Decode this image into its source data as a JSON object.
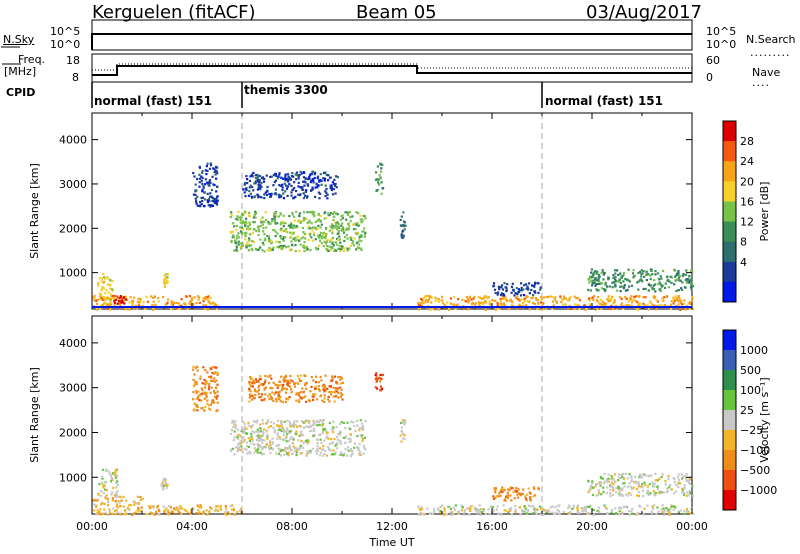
{
  "header": {
    "station": "Kerguelen (fitACF)",
    "beam": "Beam 05",
    "date": "03/Aug/2017"
  },
  "noise_panel": {
    "left_label": "N.Sky",
    "right_label": "N.Search",
    "left_ticks": [
      "10^5",
      "10^0"
    ],
    "right_ticks": [
      "10^5",
      "10^0"
    ]
  },
  "freq_panel": {
    "left_label_1": "Freq.",
    "left_label_2": "[MHz]",
    "right_label": "Nave",
    "left_ticks": [
      "18",
      "8"
    ],
    "right_ticks": [
      "60",
      "0"
    ]
  },
  "cpid": {
    "label": "CPID",
    "modes": [
      {
        "name": "normal (fast) 151",
        "start_h": 0
      },
      {
        "name": "themis 3300",
        "start_h": 6
      },
      {
        "name": "normal (fast) 151",
        "start_h": 18
      }
    ]
  },
  "time_axis": {
    "label": "Time UT",
    "ticks": [
      "00:00",
      "04:00",
      "08:00",
      "12:00",
      "16:00",
      "20:00",
      "00:00"
    ]
  },
  "chart_data": [
    {
      "type": "heatmap",
      "name": "power",
      "ylabel": "Slant Range [km]",
      "yticks": [
        1000,
        2000,
        3000,
        4000
      ],
      "ylim": [
        180,
        4600
      ],
      "xlim_hours": [
        0,
        24
      ],
      "colorbar": {
        "label": "Power [dB]",
        "ticks": [
          "28",
          "24",
          "20",
          "16",
          "12",
          "8",
          "4"
        ],
        "colors": [
          "#dd0000",
          "#f35a10",
          "#f7a418",
          "#f5cf2a",
          "#79c24a",
          "#3a8f58",
          "#2e6f6e",
          "#1a3a9c",
          "#0018e8"
        ]
      },
      "regions": [
        {
          "h0": 0.2,
          "h1": 0.8,
          "r0": 180,
          "r1": 1000,
          "c": 3
        },
        {
          "h0": 2.8,
          "h1": 3.0,
          "r0": 700,
          "r1": 1000,
          "c": 3
        },
        {
          "h0": 0.0,
          "h1": 5.0,
          "r0": 180,
          "r1": 500,
          "c": 2
        },
        {
          "h0": 0.8,
          "h1": 1.4,
          "r0": 300,
          "r1": 500,
          "c": 0
        },
        {
          "h0": 5.5,
          "h1": 10.9,
          "r0": 1500,
          "r1": 2400,
          "c": 4
        },
        {
          "h0": 4.0,
          "h1": 5.0,
          "r0": 2500,
          "r1": 3500,
          "c": 7
        },
        {
          "h0": 6.0,
          "h1": 9.8,
          "r0": 2700,
          "r1": 3300,
          "c": 7
        },
        {
          "h0": 11.3,
          "h1": 11.6,
          "r0": 2800,
          "r1": 3500,
          "c": 5
        },
        {
          "h0": 12.3,
          "h1": 12.5,
          "r0": 1800,
          "r1": 2400,
          "c": 6
        },
        {
          "h0": 13.0,
          "h1": 24.0,
          "r0": 180,
          "r1": 500,
          "c": 2
        },
        {
          "h0": 16.0,
          "h1": 18.0,
          "r0": 500,
          "r1": 800,
          "c": 7
        },
        {
          "h0": 19.8,
          "h1": 24.0,
          "r0": 600,
          "r1": 1100,
          "c": 5
        }
      ]
    },
    {
      "type": "heatmap",
      "name": "velocity",
      "ylabel": "Slant Range [km]",
      "yticks": [
        1000,
        2000,
        3000,
        4000
      ],
      "ylim": [
        180,
        4600
      ],
      "xlim_hours": [
        0,
        24
      ],
      "colorbar": {
        "label": "Velocity [m s⁻¹]",
        "ticks": [
          "1000",
          "500",
          "100",
          "25",
          "−25",
          "−100",
          "−500",
          "−1000"
        ],
        "colors": [
          "#0018e8",
          "#3a5fb5",
          "#2f8f4e",
          "#66c43d",
          "#c8c8c8",
          "#f2b52a",
          "#f08c1a",
          "#ef5010",
          "#e00000"
        ]
      },
      "regions": [
        {
          "h0": 0.0,
          "h1": 2.0,
          "r0": 180,
          "r1": 600,
          "c": 5
        },
        {
          "h0": 0.2,
          "h1": 1.0,
          "r0": 600,
          "r1": 1200,
          "c": 4
        },
        {
          "h0": 2.7,
          "h1": 3.0,
          "r0": 700,
          "r1": 1000,
          "c": 4
        },
        {
          "h0": 2.0,
          "h1": 6.0,
          "r0": 180,
          "r1": 400,
          "c": 5
        },
        {
          "h0": 5.5,
          "h1": 10.9,
          "r0": 1500,
          "r1": 2300,
          "c": 4
        },
        {
          "h0": 4.0,
          "h1": 5.0,
          "r0": 2500,
          "r1": 3500,
          "c": 6
        },
        {
          "h0": 6.2,
          "h1": 10.0,
          "r0": 2700,
          "r1": 3300,
          "c": 6
        },
        {
          "h0": 11.3,
          "h1": 11.6,
          "r0": 2900,
          "r1": 3400,
          "c": 7
        },
        {
          "h0": 12.3,
          "h1": 12.5,
          "r0": 1800,
          "r1": 2300,
          "c": 4
        },
        {
          "h0": 13.0,
          "h1": 24.0,
          "r0": 180,
          "r1": 400,
          "c": 4
        },
        {
          "h0": 16.0,
          "h1": 18.0,
          "r0": 500,
          "r1": 800,
          "c": 6
        },
        {
          "h0": 19.8,
          "h1": 24.0,
          "r0": 600,
          "r1": 1100,
          "c": 4
        }
      ]
    }
  ]
}
